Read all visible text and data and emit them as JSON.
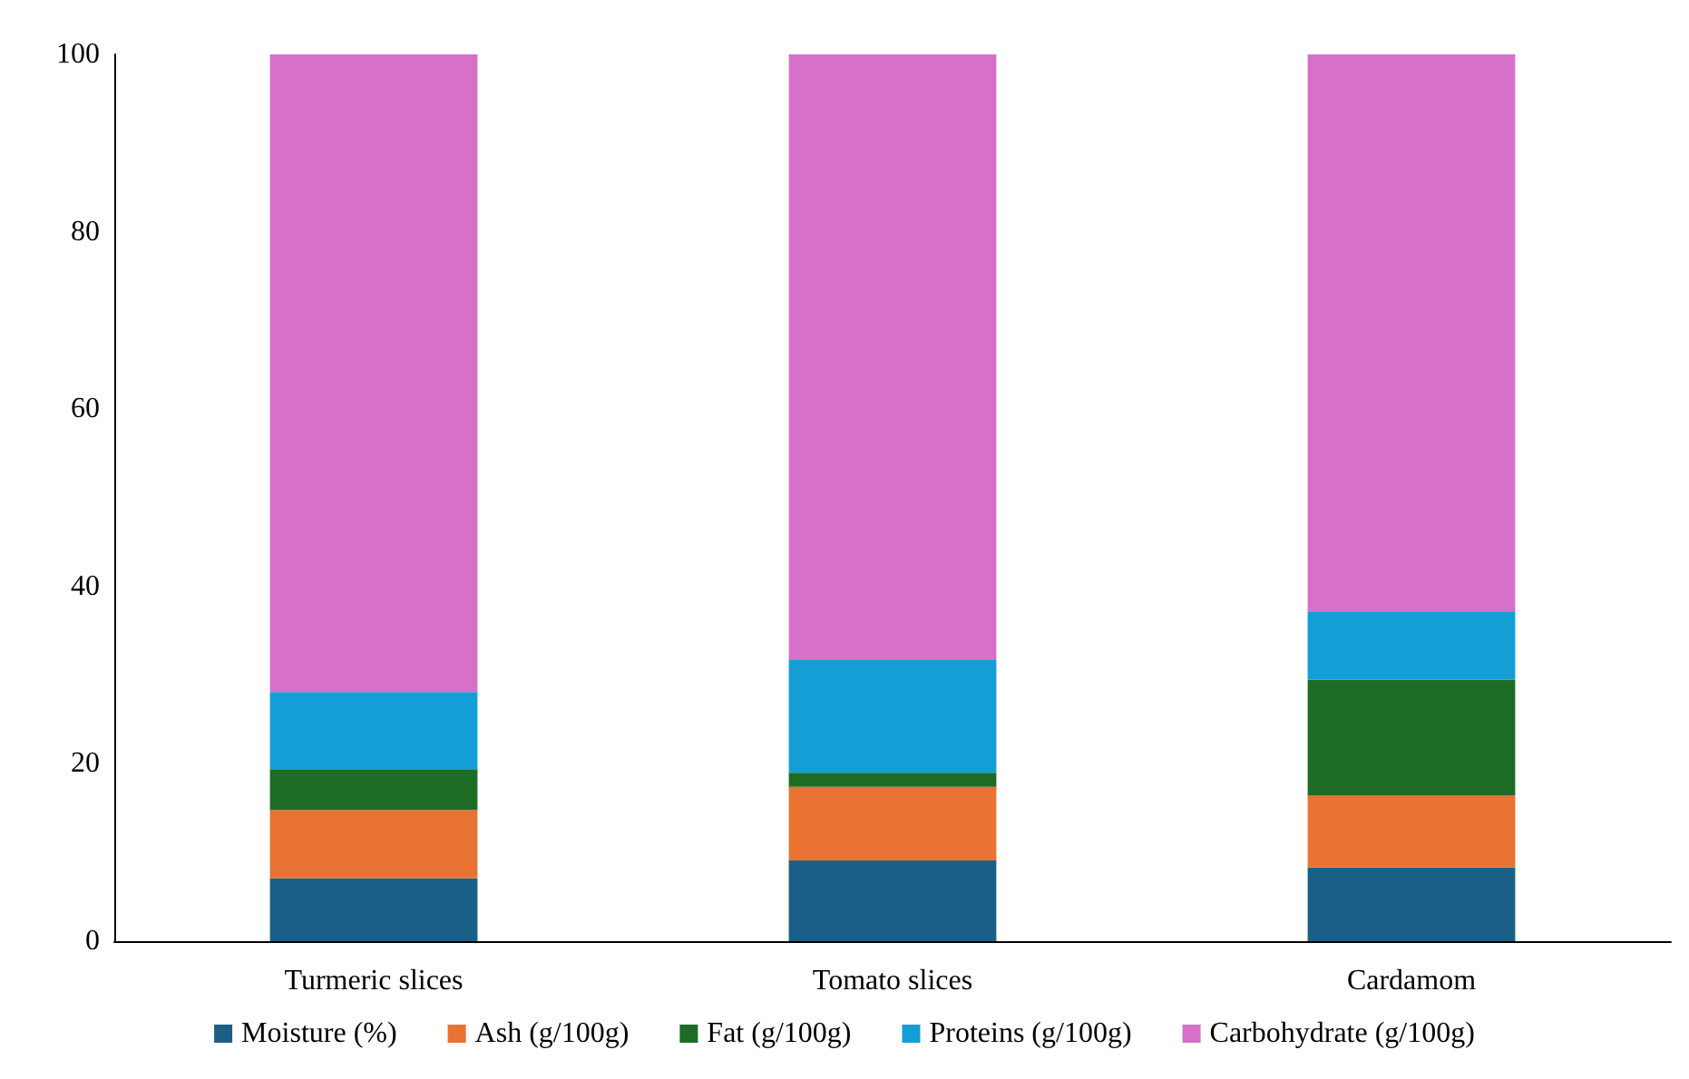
{
  "chart_data": {
    "type": "bar",
    "stacked": true,
    "categories": [
      "Turmeric slices",
      "Tomato slices",
      "Cardamom"
    ],
    "series": [
      {
        "name": "Moisture (%)",
        "color": "#1a5f86",
        "values": [
          7.1,
          9.1,
          8.3
        ]
      },
      {
        "name": "Ash (g/100g)",
        "color": "#e87232",
        "values": [
          7.7,
          8.3,
          8.1
        ]
      },
      {
        "name": "Fat (g/100g)",
        "color": "#1e6b26",
        "values": [
          4.6,
          1.6,
          13.1
        ]
      },
      {
        "name": "Proteins (g/100g)",
        "color": "#149ed6",
        "values": [
          8.7,
          12.7,
          7.7
        ]
      },
      {
        "name": "Carbohydrate (g/100g)",
        "color": "#d770c8",
        "values": [
          71.9,
          68.3,
          62.8
        ]
      }
    ],
    "ylim": [
      0,
      100
    ],
    "yticks": [
      0,
      20,
      40,
      60,
      80,
      100
    ],
    "grid": false,
    "legend": "bottom"
  }
}
